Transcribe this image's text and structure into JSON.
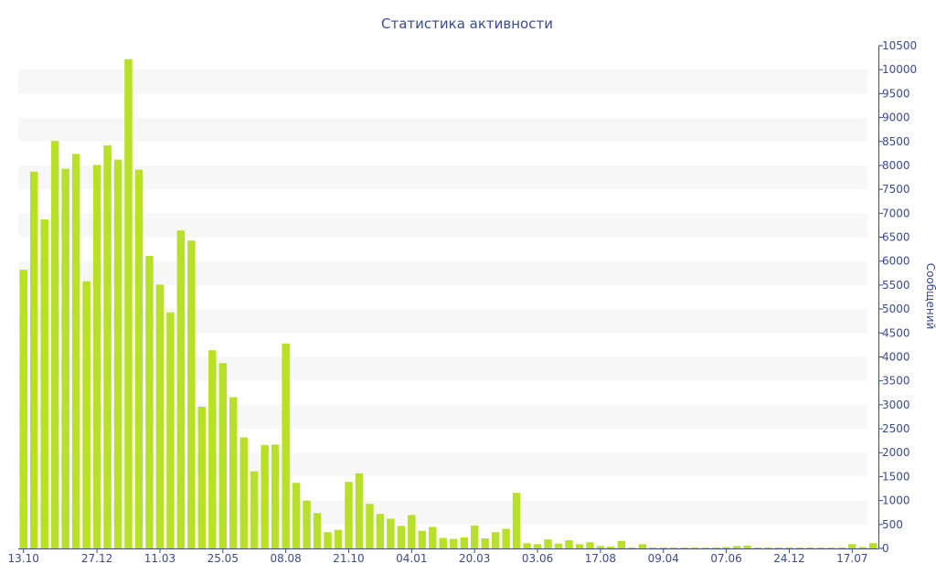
{
  "chart_data": {
    "type": "bar",
    "title": "Статистика активности",
    "ylabel": "Сообщений",
    "ylim": [
      0,
      10500
    ],
    "y_ticks": [
      0,
      500,
      1000,
      1500,
      2000,
      2500,
      3000,
      3500,
      4000,
      4500,
      5000,
      5500,
      6000,
      6500,
      7000,
      7500,
      8000,
      8500,
      9000,
      9500,
      10000,
      10500
    ],
    "x_tick_labels": [
      "13.10",
      "27.12",
      "11.03",
      "25.05",
      "08.08",
      "21.10",
      "04.01",
      "20.03",
      "03.06",
      "17.08",
      "09.04",
      "07.06",
      "24.12",
      "17.07"
    ],
    "x_tick_label_bar_index": [
      0,
      7,
      13,
      19,
      25,
      31,
      37,
      43,
      49,
      55,
      61,
      67,
      73,
      79
    ],
    "values": [
      5820,
      7870,
      6870,
      8510,
      7930,
      8240,
      5580,
      8010,
      8420,
      8120,
      10220,
      7910,
      6110,
      5510,
      4930,
      6640,
      6430,
      2960,
      4140,
      3870,
      3160,
      2320,
      1610,
      2160,
      2170,
      4280,
      1370,
      1000,
      740,
      340,
      390,
      1390,
      1570,
      930,
      720,
      620,
      470,
      700,
      370,
      450,
      220,
      200,
      230,
      480,
      210,
      340,
      410,
      1160,
      110,
      90,
      190,
      100,
      170,
      90,
      130,
      50,
      40,
      160,
      20,
      90,
      20,
      20,
      20,
      20,
      20,
      20,
      20,
      30,
      50,
      60,
      20,
      20,
      20,
      20,
      20,
      20,
      20,
      20,
      20,
      90,
      30,
      110
    ],
    "grid": "horizontal bands",
    "colors": {
      "bar": "#b8e029",
      "band": "#f7f7f7",
      "text": "#3b4a8c",
      "axis": "#3b4a8c"
    }
  }
}
